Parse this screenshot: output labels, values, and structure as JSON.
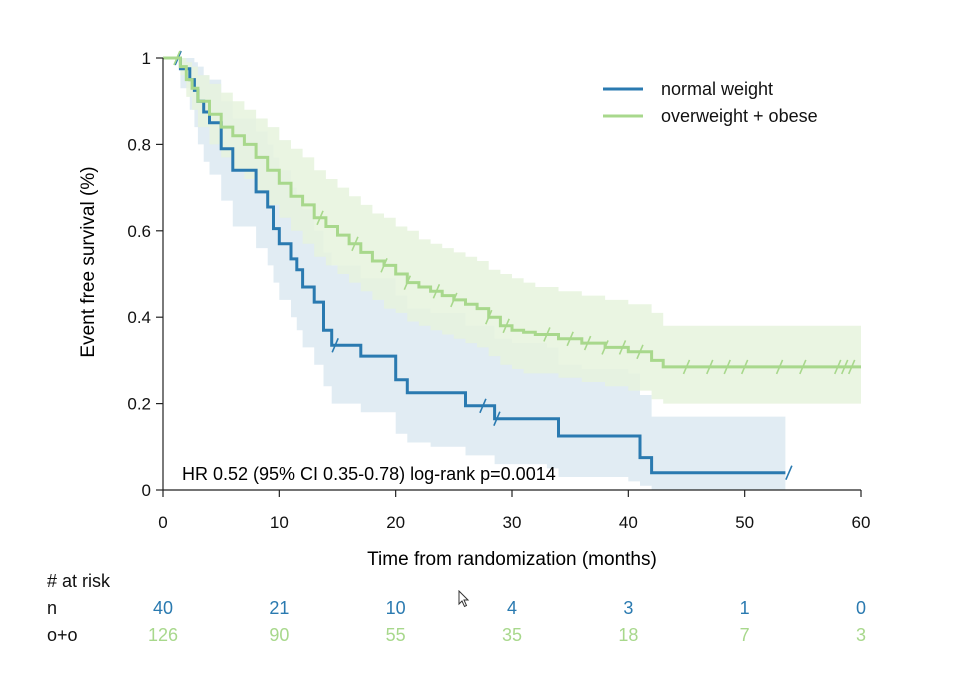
{
  "chart_data": {
    "type": "line",
    "subtype": "kaplan-meier",
    "title": "",
    "xlabel": "Time from randomization (months)",
    "ylabel": "Event free survival (%)",
    "xlim": [
      0,
      60
    ],
    "ylim": [
      0,
      1
    ],
    "x_ticks": [
      0,
      10,
      20,
      30,
      40,
      50,
      60
    ],
    "y_ticks": [
      0,
      0.2,
      0.4,
      0.6,
      0.8,
      1
    ],
    "y_tick_labels": [
      "0",
      "0.2",
      "0.4",
      "0.6",
      "0.8",
      "1"
    ],
    "grid": false,
    "legend_position": "top-right",
    "annotation": "HR 0.52 (95% CI 0.35-0.78) log-rank p=0.0014",
    "series": [
      {
        "name": "normal weight",
        "color": "#2a7ab0",
        "ci_color": "#dce9f1",
        "x": [
          0,
          1.5,
          2.3,
          2.7,
          3.0,
          3.5,
          4.0,
          5.0,
          6.0,
          8.0,
          9.0,
          9.5,
          10.0,
          11.0,
          11.5,
          12.0,
          13.0,
          13.8,
          14.5,
          17.0,
          20.0,
          21.0,
          23.0,
          26.0,
          28.5,
          30.0,
          33.0,
          34.0,
          36.0,
          40.0,
          41.0,
          42.0,
          48.0,
          53.5
        ],
        "y": [
          1.0,
          0.975,
          0.95,
          0.925,
          0.9,
          0.875,
          0.85,
          0.79,
          0.74,
          0.69,
          0.655,
          0.605,
          0.57,
          0.535,
          0.51,
          0.47,
          0.435,
          0.37,
          0.335,
          0.31,
          0.255,
          0.225,
          0.225,
          0.195,
          0.165,
          0.165,
          0.165,
          0.125,
          0.125,
          0.125,
          0.075,
          0.04,
          0.04,
          0.04
        ],
        "ci_upper": [
          1.0,
          1.0,
          1.0,
          0.99,
          0.98,
          0.96,
          0.95,
          0.9,
          0.86,
          0.83,
          0.8,
          0.77,
          0.74,
          0.7,
          0.68,
          0.65,
          0.6,
          0.55,
          0.52,
          0.49,
          0.45,
          0.42,
          0.41,
          0.38,
          0.35,
          0.34,
          0.33,
          0.29,
          0.28,
          0.27,
          0.22,
          0.17,
          0.17,
          0.17
        ],
        "ci_lower": [
          1.0,
          0.93,
          0.88,
          0.84,
          0.8,
          0.76,
          0.73,
          0.67,
          0.61,
          0.56,
          0.52,
          0.48,
          0.44,
          0.4,
          0.37,
          0.33,
          0.29,
          0.24,
          0.2,
          0.18,
          0.13,
          0.11,
          0.1,
          0.08,
          0.06,
          0.06,
          0.05,
          0.03,
          0.03,
          0.02,
          0.01,
          0.0,
          0.0,
          0.0
        ],
        "censored": [
          1.3,
          14.8,
          27.5,
          28.7,
          53.8
        ]
      },
      {
        "name": "overweight + obese",
        "color": "#a8d88c",
        "ci_color": "#e6f3dd",
        "x": [
          0,
          1.5,
          2.0,
          2.5,
          3.0,
          4.0,
          5.0,
          6.0,
          7.0,
          8.0,
          9.0,
          10.0,
          11.0,
          12.0,
          13.0,
          14.0,
          15.0,
          16.0,
          17.0,
          18.0,
          19.0,
          20.0,
          21.0,
          22.0,
          23.0,
          24.0,
          25.0,
          26.0,
          27.0,
          28.0,
          29.0,
          30.0,
          31.0,
          32.0,
          34.0,
          36.0,
          38.0,
          40.0,
          42.0,
          43.0,
          50.0,
          60.0
        ],
        "y": [
          1.0,
          0.98,
          0.95,
          0.93,
          0.9,
          0.87,
          0.84,
          0.82,
          0.8,
          0.77,
          0.74,
          0.71,
          0.68,
          0.66,
          0.63,
          0.61,
          0.59,
          0.57,
          0.55,
          0.53,
          0.52,
          0.5,
          0.48,
          0.47,
          0.46,
          0.45,
          0.44,
          0.43,
          0.42,
          0.4,
          0.38,
          0.37,
          0.365,
          0.36,
          0.35,
          0.34,
          0.33,
          0.32,
          0.3,
          0.285,
          0.285,
          0.285
        ],
        "ci_upper": [
          1.0,
          1.0,
          0.99,
          0.98,
          0.96,
          0.94,
          0.92,
          0.9,
          0.88,
          0.86,
          0.84,
          0.81,
          0.79,
          0.77,
          0.74,
          0.72,
          0.7,
          0.68,
          0.66,
          0.64,
          0.63,
          0.61,
          0.6,
          0.58,
          0.57,
          0.56,
          0.55,
          0.54,
          0.53,
          0.51,
          0.5,
          0.49,
          0.48,
          0.47,
          0.46,
          0.45,
          0.44,
          0.43,
          0.41,
          0.38,
          0.38,
          0.38
        ],
        "ci_lower": [
          1.0,
          0.96,
          0.91,
          0.88,
          0.84,
          0.8,
          0.77,
          0.74,
          0.72,
          0.69,
          0.66,
          0.63,
          0.6,
          0.57,
          0.54,
          0.52,
          0.5,
          0.48,
          0.46,
          0.44,
          0.42,
          0.41,
          0.39,
          0.38,
          0.37,
          0.36,
          0.35,
          0.34,
          0.33,
          0.31,
          0.29,
          0.28,
          0.27,
          0.27,
          0.26,
          0.25,
          0.24,
          0.23,
          0.21,
          0.2,
          0.2,
          0.2
        ],
        "censored": [
          1.2,
          13.5,
          16.5,
          19.0,
          21.0,
          23.5,
          25.0,
          28.0,
          29.5,
          33.0,
          35.0,
          36.5,
          38.0,
          39.5,
          41.0,
          45.0,
          47.0,
          48.5,
          50.0,
          53.0,
          55.0,
          58.0,
          58.6,
          59.2
        ]
      }
    ],
    "at_risk": {
      "header": "# at risk",
      "times": [
        0,
        10,
        20,
        30,
        40,
        50,
        60
      ],
      "rows": [
        {
          "label": "n",
          "color": "#2a7ab0",
          "values": [
            "40",
            "21",
            "10",
            "4",
            "3",
            "1",
            "0"
          ]
        },
        {
          "label": "o+o",
          "color": "#a8d88c",
          "values": [
            "126",
            "90",
            "55",
            "35",
            "18",
            "7",
            "3"
          ]
        }
      ]
    }
  }
}
